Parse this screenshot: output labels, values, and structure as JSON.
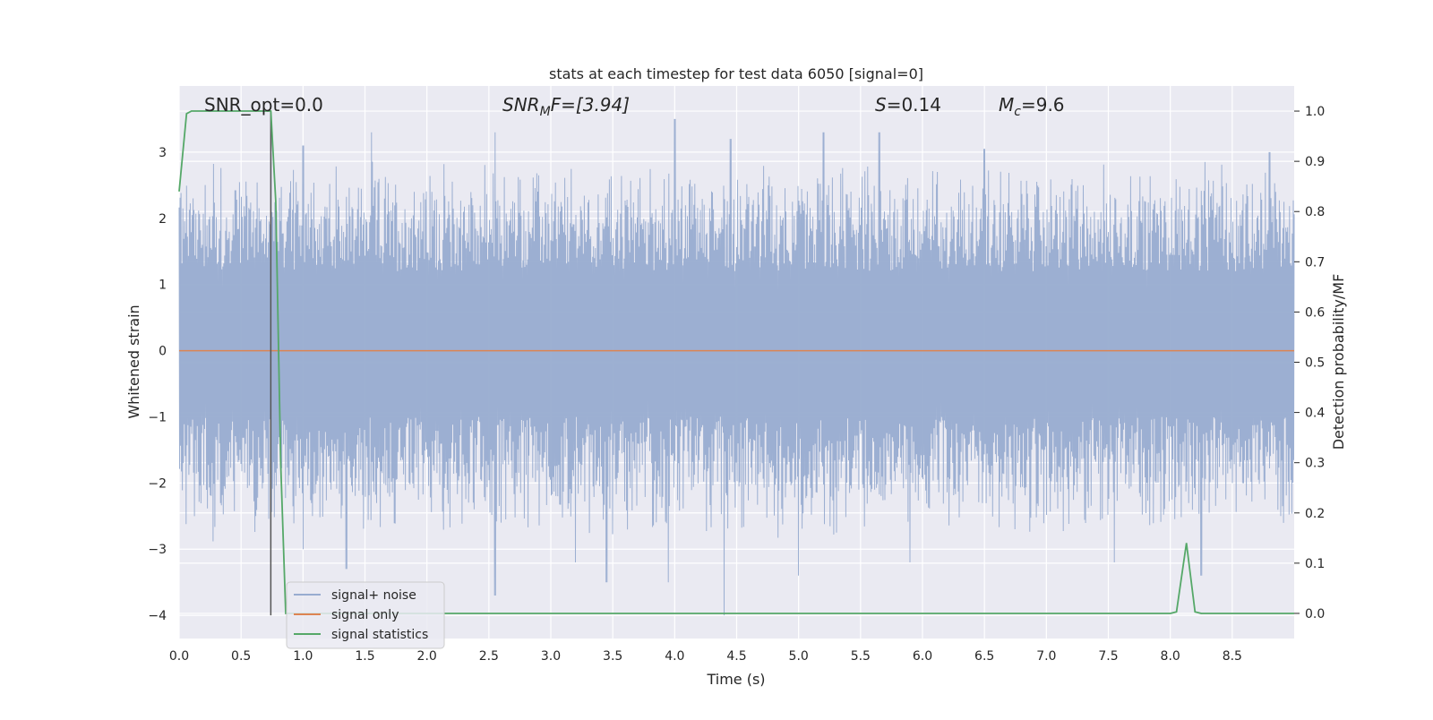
{
  "chart_data": {
    "type": "line",
    "title": "stats at each timestep for test data 6050 [signal=0]",
    "xlabel": "Time (s)",
    "ylabel": "Whitened strain",
    "y2label": "Detection probability/MF",
    "xlim": [
      0.0,
      9.0
    ],
    "ylim": [
      -4.35,
      4.0
    ],
    "y2lim": [
      -0.05,
      1.05
    ],
    "xticks": [
      "0.0",
      "0.5",
      "1.0",
      "1.5",
      "2.0",
      "2.5",
      "3.0",
      "3.5",
      "4.0",
      "4.5",
      "5.0",
      "5.5",
      "6.0",
      "6.5",
      "7.0",
      "7.5",
      "8.0",
      "8.5"
    ],
    "yticks": [
      "3",
      "2",
      "1",
      "0",
      "−1",
      "−2",
      "−3",
      "−4"
    ],
    "y2ticks": [
      "1.0",
      "0.9",
      "0.8",
      "0.7",
      "0.6",
      "0.5",
      "0.4",
      "0.3",
      "0.2",
      "0.1",
      "0.0"
    ],
    "grid": true,
    "legend_position": "lower-left",
    "annotations": {
      "snr_opt": "SNR_opt=0.0",
      "snr_mf_base": "SNR",
      "snr_mf_sub": "M",
      "snr_mf_rest": "F=[3.94]",
      "s_base": "S",
      "s_value": "=0.14",
      "mc_base": "M",
      "mc_sub": "c",
      "mc_value": "=9.6"
    },
    "event_marker_time": 0.74,
    "series": [
      {
        "name": "signal+ noise",
        "color": "#98acd0",
        "axis": "left",
        "description_peaks": {
          "upper_typical": [
            1.2,
            2.9
          ],
          "lower_typical": [
            -1.0,
            -2.9
          ],
          "upper_extremes": [
            [
              0.74,
              3.6
            ],
            [
              1.0,
              3.1
            ],
            [
              1.55,
              3.3
            ],
            [
              2.55,
              3.3
            ],
            [
              4.0,
              3.5
            ],
            [
              4.45,
              3.2
            ],
            [
              5.2,
              3.3
            ],
            [
              5.65,
              3.3
            ],
            [
              6.5,
              3.05
            ],
            [
              8.8,
              3.0
            ]
          ],
          "lower_extremes": [
            [
              1.0,
              -3.0
            ],
            [
              1.35,
              -3.3
            ],
            [
              2.55,
              -3.7
            ],
            [
              3.2,
              -3.2
            ],
            [
              3.45,
              -3.5
            ],
            [
              3.95,
              -3.5
            ],
            [
              4.4,
              -4.0
            ],
            [
              5.0,
              -3.4
            ],
            [
              5.9,
              -3.2
            ],
            [
              7.55,
              -3.2
            ],
            [
              8.25,
              -3.4
            ]
          ]
        }
      },
      {
        "name": "signal only",
        "color": "#dd8452",
        "axis": "left",
        "x": [
          0.0,
          9.0
        ],
        "y": [
          0.0,
          0.0
        ]
      },
      {
        "name": "signal statistics",
        "color": "#55a868",
        "axis": "right",
        "x": [
          0.0,
          0.06,
          0.1,
          0.15,
          0.2,
          0.3,
          0.4,
          0.5,
          0.6,
          0.7,
          0.74,
          0.78,
          0.82,
          0.86,
          0.9,
          1.0,
          2.0,
          3.0,
          4.0,
          5.0,
          6.0,
          7.0,
          8.0,
          8.05,
          8.13,
          8.2,
          8.25,
          8.35,
          9.0
        ],
        "y": [
          0.84,
          0.995,
          1.0,
          1.0,
          1.0,
          1.0,
          1.0,
          1.0,
          1.0,
          1.0,
          1.0,
          0.82,
          0.3,
          0.0,
          0.0,
          0.0,
          0.0,
          0.0,
          0.0,
          0.0,
          0.0,
          0.0,
          0.0,
          0.003,
          0.14,
          0.003,
          0.0,
          0.0,
          0.0
        ]
      }
    ]
  }
}
